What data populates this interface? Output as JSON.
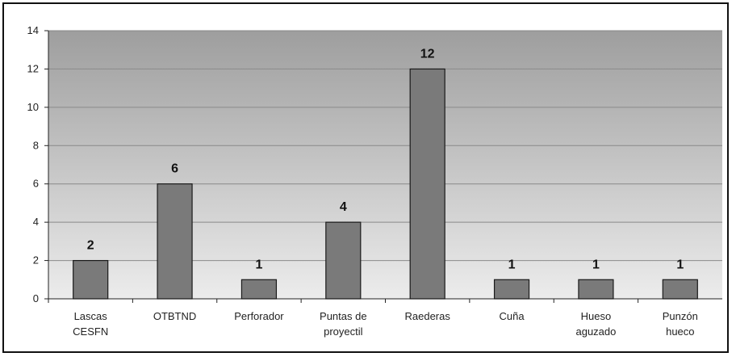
{
  "chart_data": {
    "type": "bar",
    "categories": [
      [
        "Lascas",
        "CESFN"
      ],
      [
        "OTBTND"
      ],
      [
        "Perforador"
      ],
      [
        "Puntas de",
        "proyectil"
      ],
      [
        "Raederas"
      ],
      [
        "Cuña"
      ],
      [
        "Hueso",
        "aguzado"
      ],
      [
        "Punzón",
        "hueco"
      ]
    ],
    "values": [
      2,
      6,
      1,
      4,
      12,
      1,
      1,
      1
    ],
    "ylim": [
      0,
      14
    ],
    "yticks": [
      0,
      2,
      4,
      6,
      8,
      10,
      12,
      14
    ],
    "grid": true,
    "data_labels": true,
    "colors": {
      "bar_fill": "#7a7a7a",
      "bar_stroke": "#1a1a1a",
      "plot_top": "#9e9e9e",
      "plot_bottom": "#ececec",
      "grid": "#8a8a8a"
    }
  }
}
